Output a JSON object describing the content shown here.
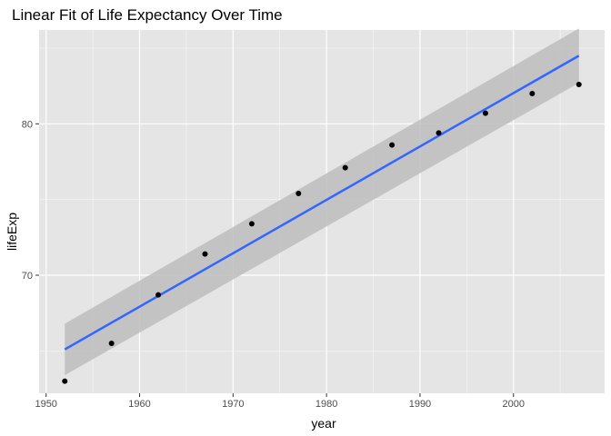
{
  "chart_data": {
    "type": "scatter",
    "title": "Linear Fit of Life Expectancy Over Time",
    "xlabel": "year",
    "ylabel": "lifeExp",
    "xlim": [
      1949.25,
      2009.75
    ],
    "ylim": [
      62.2,
      86.2
    ],
    "x_ticks_major": [
      1950,
      1960,
      1970,
      1980,
      1990,
      2000
    ],
    "x_ticks_minor": [
      1955,
      1965,
      1975,
      1985,
      1995,
      2005
    ],
    "y_ticks_major": [
      70,
      80
    ],
    "y_ticks_minor": [
      65,
      75,
      85
    ],
    "grid": true,
    "points": {
      "x": [
        1952,
        1957,
        1962,
        1967,
        1972,
        1977,
        1982,
        1987,
        1992,
        1997,
        2002,
        2007
      ],
      "y": [
        63.0,
        65.5,
        68.7,
        71.4,
        73.4,
        75.4,
        77.1,
        78.6,
        79.4,
        80.7,
        82.0,
        82.6
      ]
    },
    "fit": {
      "method": "linear",
      "x": [
        1952,
        2007
      ],
      "y": [
        65.1,
        84.5
      ],
      "ci_lower": [
        63.4,
        82.7
      ],
      "ci_upper": [
        66.8,
        86.3
      ]
    },
    "colors": {
      "panel": "#e5e5e5",
      "grid": "#ffffff",
      "line": "#3366ff",
      "ribbon": "#bdbdbd",
      "point": "#000000"
    }
  }
}
